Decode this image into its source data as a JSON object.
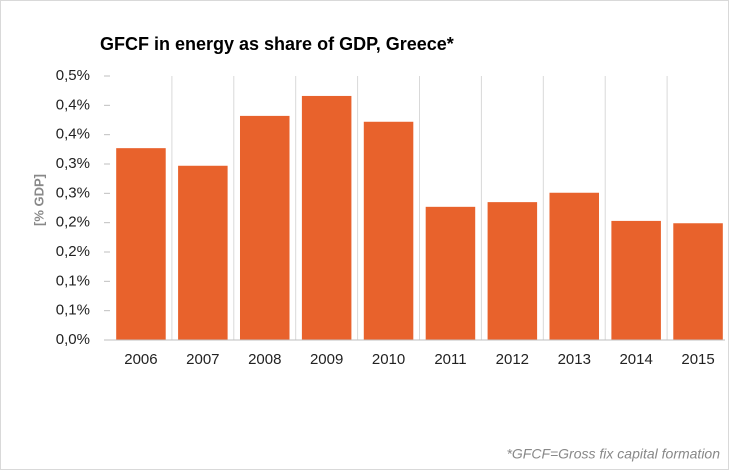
{
  "chart_data": {
    "type": "bar",
    "title": "GFCF in energy as share of GDP, Greece*",
    "y_label": "[% GDP]",
    "note": "*GFCF=Gross fix capital formation",
    "categories": [
      "2006",
      "2007",
      "2008",
      "2009",
      "2010",
      "2011",
      "2012",
      "2013",
      "2014",
      "2015"
    ],
    "values": [
      0.327,
      0.297,
      0.382,
      0.416,
      0.372,
      0.227,
      0.235,
      0.251,
      0.203,
      0.199
    ],
    "color": "#e8622c",
    "ylim": [
      0,
      0.45
    ],
    "yticks": [
      {
        "value": 0,
        "label": "0,0%"
      },
      {
        "value": 0.05,
        "label": "0,1%"
      },
      {
        "value": 0.1,
        "label": "0,1%"
      },
      {
        "value": 0.15,
        "label": "0,2%"
      },
      {
        "value": 0.2,
        "label": "0,2%"
      },
      {
        "value": 0.25,
        "label": "0,3%"
      },
      {
        "value": 0.3,
        "label": "0,3%"
      },
      {
        "value": 0.35,
        "label": "0,4%"
      },
      {
        "value": 0.4,
        "label": "0,4%"
      },
      {
        "value": 0.45,
        "label": "0,5%"
      }
    ],
    "grid": true
  }
}
